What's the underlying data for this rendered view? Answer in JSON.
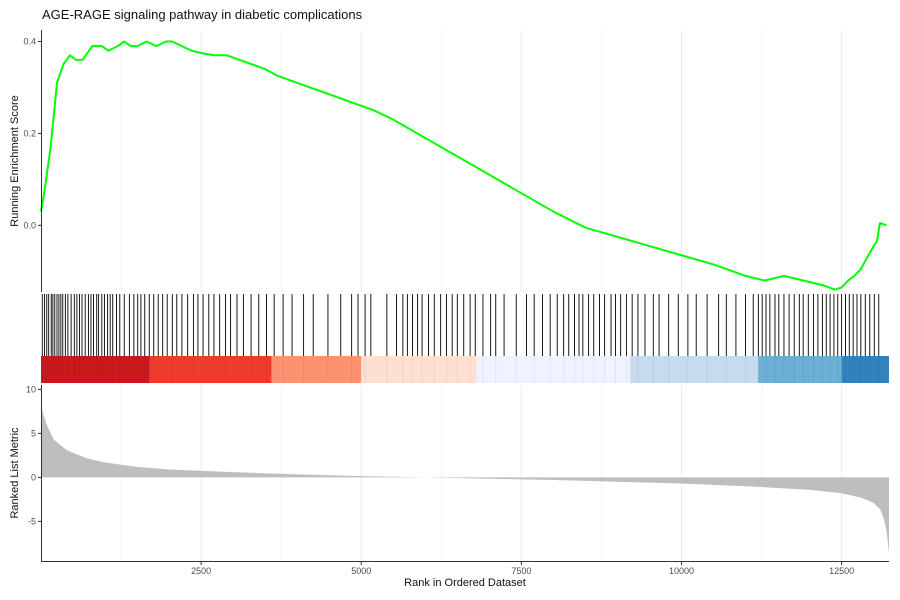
{
  "chart_data": {
    "type": "line",
    "title": "AGE-RAGE signaling pathway in diabetic complications",
    "xlabel": "Rank in Ordered Dataset",
    "xlim": [
      0,
      13240
    ],
    "x_ticks": [
      2500,
      5000,
      7500,
      10000,
      12500
    ],
    "grid": "vertical major and minor lines, light grey",
    "colors": {
      "es_line": "#00ff00",
      "hits": "#000000",
      "metric_fill": "#bebebe"
    },
    "panels": [
      {
        "name": "running_enrichment",
        "ylabel": "Running Enrichment Score",
        "ylim": [
          -0.145,
          0.425
        ],
        "y_ticks": [
          0.0,
          0.2,
          0.4
        ],
        "series": [
          {
            "x": [
              0,
              60,
              150,
              250,
              350,
              450,
              550,
              650,
              700,
              800,
              950,
              1050,
              1200,
              1300,
              1400,
              1500,
              1650,
              1800,
              1950,
              2050,
              2200,
              2350,
              2500,
              2700,
              2900,
              3100,
              3300,
              3500,
              3700,
              3900,
              4200,
              4500,
              4800,
              5000,
              5200,
              5500,
              6000,
              6500,
              7000,
              7500,
              8000,
              8500,
              9000,
              9500,
              10000,
              10500,
              11000,
              11300,
              11600,
              11900,
              12200,
              12400,
              12500,
              12600,
              12700,
              12800,
              12900,
              13000,
              13050,
              13100,
              13200
            ],
            "values": [
              0.03,
              0.08,
              0.17,
              0.31,
              0.35,
              0.37,
              0.36,
              0.36,
              0.37,
              0.39,
              0.39,
              0.38,
              0.39,
              0.4,
              0.39,
              0.39,
              0.4,
              0.39,
              0.4,
              0.4,
              0.39,
              0.38,
              0.375,
              0.37,
              0.37,
              0.36,
              0.35,
              0.34,
              0.325,
              0.315,
              0.3,
              0.285,
              0.27,
              0.26,
              0.25,
              0.23,
              0.19,
              0.15,
              0.11,
              0.07,
              0.03,
              -0.005,
              -0.025,
              -0.045,
              -0.065,
              -0.085,
              -0.11,
              -0.12,
              -0.11,
              -0.12,
              -0.13,
              -0.14,
              -0.135,
              -0.12,
              -0.11,
              -0.095,
              -0.07,
              -0.045,
              -0.035,
              0.005,
              0.0
            ]
          }
        ]
      },
      {
        "name": "gene_hits",
        "description_colors": [
          "#cb181d",
          "#ef3b2c",
          "#fc9272",
          "#fee0d2",
          "#eff3ff",
          "#c6dbef",
          "#6baed6",
          "#3182bd"
        ],
        "color_band_breaks": [
          0,
          1700,
          3600,
          5000,
          6800,
          9200,
          11200,
          12500,
          13240
        ],
        "hits": [
          20,
          55,
          90,
          120,
          160,
          185,
          215,
          250,
          280,
          310,
          340,
          380,
          420,
          470,
          520,
          560,
          600,
          640,
          690,
          740,
          780,
          820,
          870,
          900,
          950,
          990,
          1040,
          1080,
          1120,
          1180,
          1230,
          1300,
          1380,
          1450,
          1510,
          1560,
          1620,
          1690,
          1760,
          1830,
          1900,
          1970,
          2050,
          2120,
          2200,
          2290,
          2380,
          2450,
          2530,
          2620,
          2700,
          2790,
          2880,
          2960,
          3060,
          3160,
          3280,
          3400,
          3520,
          3640,
          3780,
          3920,
          4100,
          4250,
          4480,
          4680,
          4850,
          4950,
          5060,
          5150,
          5400,
          5550,
          5650,
          5720,
          5800,
          5880,
          5950,
          6050,
          6140,
          6240,
          6330,
          6420,
          6500,
          6600,
          6700,
          6780,
          6900,
          7020,
          7100,
          7230,
          7420,
          7580,
          7700,
          7830,
          7950,
          8060,
          8160,
          8240,
          8330,
          8400,
          8460,
          8550,
          8630,
          8720,
          8800,
          8900,
          8970,
          9050,
          9140,
          9230,
          9320,
          9430,
          9560,
          9650,
          9800,
          9950,
          10100,
          10230,
          10400,
          10580,
          10700,
          10850,
          11000,
          11120,
          11200,
          11260,
          11320,
          11380,
          11460,
          11520,
          11600,
          11680,
          11760,
          11840,
          11900,
          11980,
          12060,
          12130,
          12200,
          12260,
          12320,
          12380,
          12440,
          12500,
          12560,
          12620,
          12680,
          12740,
          12800,
          12870,
          12940,
          13010,
          13080
        ]
      },
      {
        "name": "ranked_metric",
        "ylabel": "Ranked List Metric",
        "ylim": [
          -9.5,
          10.5
        ],
        "y_ticks": [
          10,
          5,
          0,
          -5
        ],
        "series": [
          {
            "x": [
              0,
              30,
              100,
              200,
              400,
              700,
              1000,
              1500,
              2000,
              3000,
              4000,
              5000,
              6000,
              7000,
              8000,
              9000,
              10000,
              11000,
              12000,
              12500,
              12800,
              13000,
              13100,
              13150,
              13200,
              13240
            ],
            "values": [
              8.5,
              7.3,
              5.8,
              4.3,
              3.1,
              2.2,
              1.7,
              1.2,
              0.9,
              0.6,
              0.35,
              0.15,
              0.0,
              -0.15,
              -0.3,
              -0.5,
              -0.7,
              -1.0,
              -1.4,
              -1.8,
              -2.3,
              -2.9,
              -3.6,
              -4.5,
              -6.0,
              -8.6
            ]
          }
        ]
      }
    ]
  }
}
